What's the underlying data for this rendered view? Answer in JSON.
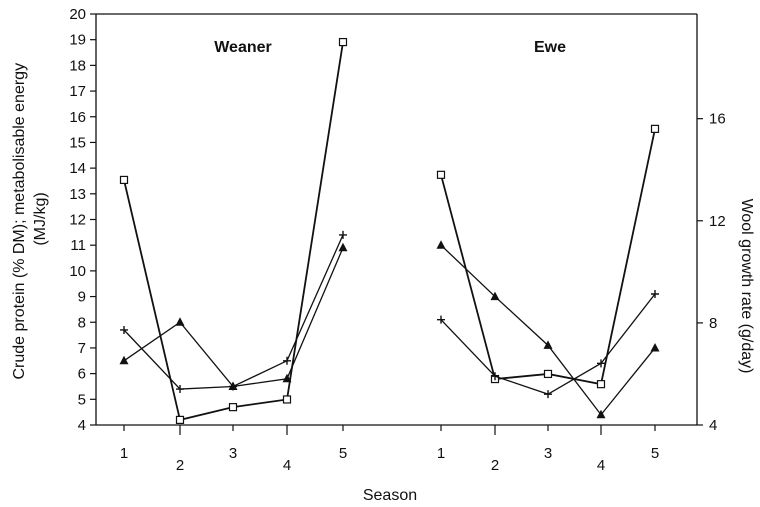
{
  "chart_data": {
    "type": "line",
    "xlabel": "Season",
    "ylabel_left": [
      "Crude protein (% DM); metabolisable energy",
      "(MJ/kg)"
    ],
    "ylabel_right": "Wool growth rate (g/day)",
    "ylim_left": [
      4,
      20
    ],
    "yticks_left": [
      4,
      5,
      6,
      7,
      8,
      9,
      10,
      11,
      12,
      13,
      14,
      15,
      16,
      17,
      18,
      19,
      20
    ],
    "ylim_right": [
      4,
      20.1
    ],
    "yticks_right": [
      4,
      8,
      12,
      16
    ],
    "grid": false,
    "legend": "none",
    "panels": [
      {
        "title": "Weaner",
        "x": [
          1,
          2,
          3,
          4,
          5
        ],
        "series": [
          {
            "marker": "square",
            "axis": "right",
            "values": [
              13.6,
              4.2,
              4.7,
              5.0,
              19.0
            ]
          },
          {
            "marker": "plus",
            "axis": "left",
            "values": [
              7.7,
              5.4,
              5.5,
              6.5,
              11.4
            ]
          },
          {
            "marker": "triangle",
            "axis": "left",
            "values": [
              6.5,
              8.0,
              5.5,
              5.8,
              10.9
            ]
          }
        ]
      },
      {
        "title": "Ewe",
        "x": [
          1,
          2,
          3,
          4,
          5
        ],
        "series": [
          {
            "marker": "square",
            "axis": "right",
            "values": [
              13.8,
              5.8,
              6.0,
              5.6,
              15.6
            ]
          },
          {
            "marker": "plus",
            "axis": "left",
            "values": [
              8.1,
              5.9,
              5.2,
              6.4,
              9.1
            ]
          },
          {
            "marker": "triangle",
            "axis": "left",
            "values": [
              11.0,
              9.0,
              7.1,
              4.4,
              7.0
            ]
          }
        ]
      }
    ]
  }
}
